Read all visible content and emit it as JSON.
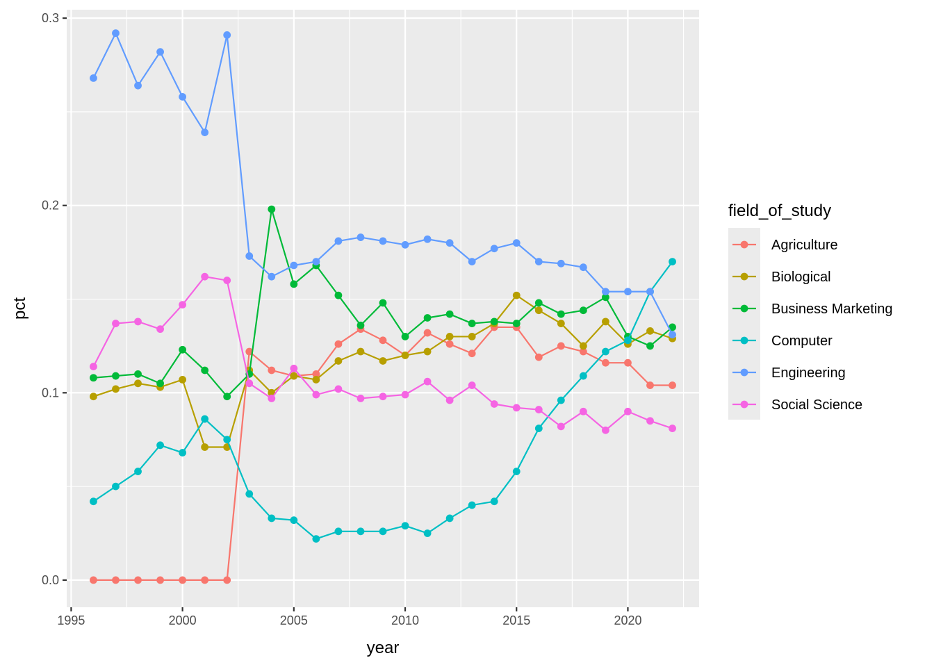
{
  "chart_data": {
    "type": "line",
    "xlabel": "year",
    "ylabel": "pct",
    "xlim": [
      1994.8,
      2023.2
    ],
    "ylim": [
      -0.0145,
      0.3045
    ],
    "x_ticks": [
      1995,
      2000,
      2005,
      2010,
      2015,
      2020
    ],
    "x_tick_labels": [
      "1995",
      "2000",
      "2005",
      "2010",
      "2015",
      "2020"
    ],
    "y_ticks": [
      0.0,
      0.1,
      0.2,
      0.3
    ],
    "y_tick_labels": [
      "0.0",
      "0.1",
      "0.2",
      "0.3"
    ],
    "grid": true,
    "legend_title": "field_of_study",
    "legend_position": "right",
    "x": [
      1996,
      1997,
      1998,
      1999,
      2000,
      2001,
      2002,
      2003,
      2004,
      2005,
      2006,
      2007,
      2008,
      2009,
      2010,
      2011,
      2012,
      2013,
      2014,
      2015,
      2016,
      2017,
      2018,
      2019,
      2020,
      2021,
      2022
    ],
    "series": [
      {
        "name": "Agriculture",
        "color": "#F8766D",
        "values": [
          0.0,
          0.0,
          0.0,
          0.0,
          0.0,
          0.0,
          0.0,
          0.122,
          0.112,
          0.109,
          0.11,
          0.126,
          0.134,
          0.128,
          0.12,
          0.132,
          0.126,
          0.121,
          0.135,
          0.135,
          0.119,
          0.125,
          0.122,
          0.116,
          0.116,
          0.104,
          0.104
        ]
      },
      {
        "name": "Biological",
        "color": "#B79F00",
        "values": [
          0.098,
          0.102,
          0.105,
          0.103,
          0.107,
          0.071,
          0.071,
          0.112,
          0.1,
          0.109,
          0.107,
          0.117,
          0.122,
          0.117,
          0.12,
          0.122,
          0.13,
          0.13,
          0.137,
          0.152,
          0.144,
          0.137,
          0.125,
          0.138,
          0.126,
          0.133,
          0.129
        ]
      },
      {
        "name": "Business Marketing",
        "color": "#00BA38",
        "values": [
          0.108,
          0.109,
          0.11,
          0.105,
          0.123,
          0.112,
          0.098,
          0.11,
          0.198,
          0.158,
          0.168,
          0.152,
          0.136,
          0.148,
          0.13,
          0.14,
          0.142,
          0.137,
          0.138,
          0.137,
          0.148,
          0.142,
          0.144,
          0.151,
          0.13,
          0.125,
          0.135
        ]
      },
      {
        "name": "Computer",
        "color": "#00BFC4",
        "values": [
          0.042,
          0.05,
          0.058,
          0.072,
          0.068,
          0.086,
          0.075,
          0.046,
          0.033,
          0.032,
          0.022,
          0.026,
          0.026,
          0.026,
          0.029,
          0.025,
          0.033,
          0.04,
          0.042,
          0.058,
          0.081,
          0.096,
          0.109,
          0.122,
          0.128,
          0.154,
          0.17
        ]
      },
      {
        "name": "Engineering",
        "color": "#619CFF",
        "values": [
          0.268,
          0.292,
          0.264,
          0.282,
          0.258,
          0.239,
          0.291,
          0.173,
          0.162,
          0.168,
          0.17,
          0.181,
          0.183,
          0.181,
          0.179,
          0.182,
          0.18,
          0.17,
          0.177,
          0.18,
          0.17,
          0.169,
          0.167,
          0.154,
          0.154,
          0.154,
          0.131
        ]
      },
      {
        "name": "Social Science",
        "color": "#F564E3",
        "values": [
          0.114,
          0.137,
          0.138,
          0.134,
          0.147,
          0.162,
          0.16,
          0.105,
          0.097,
          0.113,
          0.099,
          0.102,
          0.097,
          0.098,
          0.099,
          0.106,
          0.096,
          0.104,
          0.094,
          0.092,
          0.091,
          0.082,
          0.09,
          0.08,
          0.09,
          0.085,
          0.081
        ]
      }
    ]
  }
}
